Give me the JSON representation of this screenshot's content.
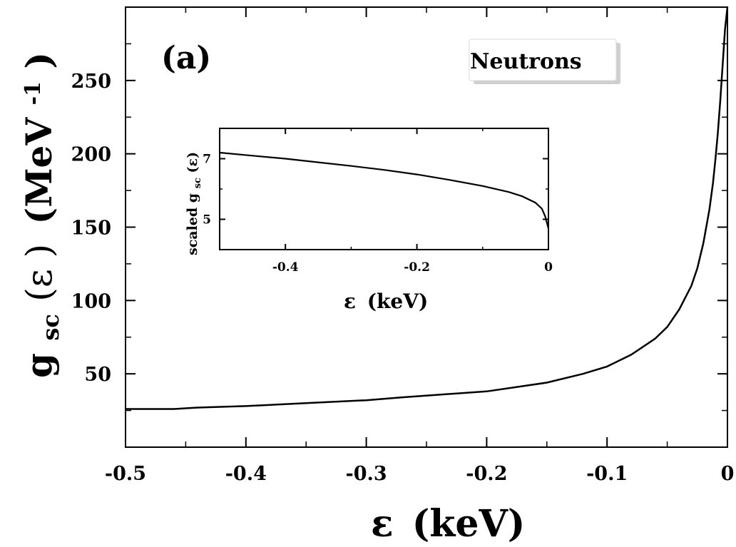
{
  "chart_data": [
    {
      "type": "line",
      "panel_label": "(a)",
      "legend_label": "Neutrons",
      "xlabel_symbol": "ε",
      "xlabel_unit": "(keV)",
      "ylabel_g": "g",
      "ylabel_sub": "sc",
      "ylabel_arg": "(ε )",
      "ylabel_unit": "(MeV",
      "ylabel_unit_sup": "-1",
      "ylabel_unit_close": ")",
      "xlim": [
        -0.5,
        0
      ],
      "ylim": [
        0,
        300
      ],
      "xticks": [
        -0.5,
        -0.4,
        -0.3,
        -0.2,
        -0.1,
        0
      ],
      "xtick_labels": [
        "-0.5",
        "-0.4",
        "-0.3",
        "-0.2",
        "-0.1",
        "0"
      ],
      "yticks": [
        50,
        100,
        150,
        200,
        250
      ],
      "ytick_labels": [
        "50",
        "100",
        "150",
        "200",
        "250"
      ],
      "series": [
        {
          "x": [
            -0.5,
            -0.46,
            -0.44,
            -0.4,
            -0.35,
            -0.3,
            -0.27,
            -0.2,
            -0.15,
            -0.12,
            -0.1,
            -0.08,
            -0.06,
            -0.05,
            -0.04,
            -0.03,
            -0.025,
            -0.02,
            -0.015,
            -0.012,
            -0.01,
            -0.008,
            -0.006,
            -0.004,
            -0.002,
            0
          ],
          "y": [
            26,
            26,
            27,
            28,
            30,
            32,
            34,
            38,
            44,
            50,
            55,
            63,
            74,
            82,
            94,
            110,
            122,
            139,
            162,
            180,
            196,
            214,
            236,
            260,
            285,
            300
          ]
        }
      ]
    },
    {
      "type": "line",
      "xlabel_symbol": "ε",
      "xlabel_unit": "(keV)",
      "ylabel_prefix": "scaled g",
      "ylabel_sub": "sc",
      "ylabel_arg": "(ε)",
      "xlim": [
        -0.5,
        0
      ],
      "ylim": [
        4,
        8
      ],
      "xticks": [
        -0.4,
        -0.2,
        0
      ],
      "xtick_labels": [
        "-0.4",
        "-0.2",
        "0"
      ],
      "yticks": [
        5,
        7
      ],
      "ytick_labels": [
        "5",
        "7"
      ],
      "series": [
        {
          "x": [
            -0.5,
            -0.45,
            -0.4,
            -0.35,
            -0.3,
            -0.25,
            -0.2,
            -0.15,
            -0.1,
            -0.06,
            -0.04,
            -0.02,
            -0.01,
            -0.005,
            0
          ],
          "y": [
            7.2,
            7.1,
            7.0,
            6.88,
            6.76,
            6.63,
            6.48,
            6.3,
            6.1,
            5.9,
            5.76,
            5.55,
            5.35,
            5.1,
            4.7
          ]
        }
      ]
    }
  ]
}
